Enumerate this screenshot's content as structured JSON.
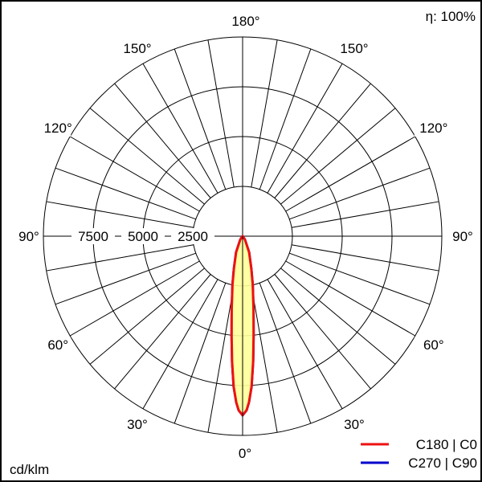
{
  "chart_data": {
    "type": "polar",
    "efficiency_label": "η: 100%",
    "unit_label": "cd/klm",
    "radial_ticks": [
      2500,
      5000,
      7500
    ],
    "radial_tick_labels": [
      "2500",
      "5000",
      "7500"
    ],
    "rmax": 10000,
    "angle_step_deg": 10,
    "angle_labels": [
      {
        "angle": 180,
        "text": "180°"
      },
      {
        "angle": 150,
        "text": "150°"
      },
      {
        "angle": 120,
        "text": "120°"
      },
      {
        "angle": 90,
        "text": "90°"
      },
      {
        "angle": 60,
        "text": "60°"
      },
      {
        "angle": 30,
        "text": "30°"
      },
      {
        "angle": 0,
        "text": "0°"
      }
    ],
    "series": [
      {
        "name": "C270 | C90",
        "color": "#0000cc",
        "angles": [
          0,
          1.3,
          2.2,
          3.4,
          4.8,
          6.3,
          8.5,
          11.8,
          15,
          22,
          35,
          90
        ],
        "values": [
          8990,
          8740,
          8340,
          7570,
          6320,
          5030,
          3700,
          2490,
          1690,
          870,
          200,
          0
        ]
      },
      {
        "name": "C180 | C0",
        "color": "#ee1111",
        "fill": "#ffff99",
        "angles": [
          0,
          1.3,
          2.2,
          3.4,
          4.8,
          6.3,
          8.5,
          11.8,
          15,
          22,
          35,
          90
        ],
        "values": [
          8990,
          8740,
          8340,
          7570,
          6320,
          5030,
          3700,
          2490,
          1690,
          870,
          200,
          0
        ]
      }
    ],
    "legend": [
      {
        "label": "C180 | C0",
        "color": "#ee1111"
      },
      {
        "label": "C270 | C90",
        "color": "#0000cc"
      }
    ]
  }
}
